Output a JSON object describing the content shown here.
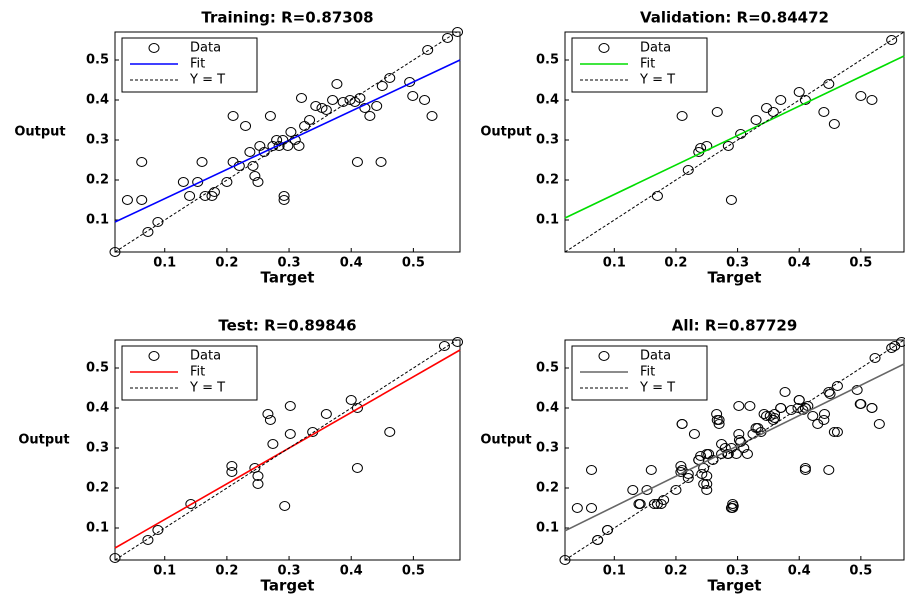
{
  "chart_data": [
    {
      "type": "scatter",
      "title": "Training: R=0.87308",
      "xlabel": "Target",
      "ylabel": "Output",
      "xlim": [
        0.02,
        0.575
      ],
      "ylim": [
        0.02,
        0.57
      ],
      "xticks": [
        0.1,
        0.2,
        0.3,
        0.4,
        0.5
      ],
      "yticks": [
        0.1,
        0.2,
        0.3,
        0.4,
        0.5
      ],
      "series": [
        {
          "name": "Data",
          "color": "#000000",
          "marker": "circle",
          "x": [
            0.02,
            0.04,
            0.063,
            0.063,
            0.073,
            0.089,
            0.13,
            0.14,
            0.153,
            0.16,
            0.165,
            0.176,
            0.18,
            0.2,
            0.21,
            0.21,
            0.22,
            0.23,
            0.237,
            0.242,
            0.245,
            0.25,
            0.253,
            0.26,
            0.27,
            0.274,
            0.28,
            0.284,
            0.29,
            0.292,
            0.292,
            0.298,
            0.303,
            0.31,
            0.316,
            0.32,
            0.325,
            0.333,
            0.343,
            0.353,
            0.36,
            0.37,
            0.377,
            0.387,
            0.398,
            0.406,
            0.41,
            0.414,
            0.422,
            0.43,
            0.441,
            0.448,
            0.45,
            0.462,
            0.494,
            0.499,
            0.518,
            0.523,
            0.53,
            0.555,
            0.571
          ],
          "values": [
            0.02,
            0.15,
            0.15,
            0.245,
            0.07,
            0.095,
            0.195,
            0.16,
            0.195,
            0.245,
            0.16,
            0.16,
            0.17,
            0.195,
            0.245,
            0.36,
            0.235,
            0.335,
            0.27,
            0.235,
            0.21,
            0.195,
            0.285,
            0.27,
            0.36,
            0.285,
            0.3,
            0.285,
            0.3,
            0.16,
            0.15,
            0.285,
            0.32,
            0.3,
            0.285,
            0.405,
            0.335,
            0.35,
            0.385,
            0.38,
            0.375,
            0.4,
            0.44,
            0.395,
            0.4,
            0.395,
            0.245,
            0.405,
            0.38,
            0.36,
            0.385,
            0.245,
            0.435,
            0.455,
            0.445,
            0.41,
            0.4,
            0.525,
            0.36,
            0.555,
            0.57
          ]
        },
        {
          "name": "Fit",
          "color": "#0000ff",
          "style": "solid",
          "x": [
            0.02,
            0.575
          ],
          "values": [
            0.095,
            0.5
          ]
        },
        {
          "name": "Y = T",
          "color": "#000000",
          "style": "dashed",
          "x": [
            0.02,
            0.57
          ],
          "values": [
            0.02,
            0.57
          ]
        }
      ]
    },
    {
      "type": "scatter",
      "title": "Validation: R=0.84472",
      "xlabel": "Target",
      "ylabel": "Output",
      "xlim": [
        0.02,
        0.57
      ],
      "ylim": [
        0.02,
        0.57
      ],
      "xticks": [
        0.1,
        0.2,
        0.3,
        0.4,
        0.5
      ],
      "yticks": [
        0.1,
        0.2,
        0.3,
        0.4,
        0.5
      ],
      "series": [
        {
          "name": "Data",
          "color": "#000000",
          "marker": "circle",
          "x": [
            0.17,
            0.21,
            0.22,
            0.237,
            0.24,
            0.25,
            0.267,
            0.285,
            0.29,
            0.305,
            0.33,
            0.347,
            0.358,
            0.37,
            0.4,
            0.41,
            0.44,
            0.448,
            0.457,
            0.5,
            0.518,
            0.55
          ],
          "values": [
            0.16,
            0.36,
            0.225,
            0.27,
            0.28,
            0.285,
            0.37,
            0.285,
            0.15,
            0.315,
            0.35,
            0.38,
            0.37,
            0.4,
            0.42,
            0.4,
            0.37,
            0.44,
            0.34,
            0.41,
            0.4,
            0.55
          ]
        },
        {
          "name": "Fit",
          "color": "#00dd00",
          "style": "solid",
          "x": [
            0.02,
            0.57
          ],
          "values": [
            0.105,
            0.51
          ]
        },
        {
          "name": "Y = T",
          "color": "#000000",
          "style": "dashed",
          "x": [
            0.02,
            0.57
          ],
          "values": [
            0.02,
            0.57
          ]
        }
      ]
    },
    {
      "type": "scatter",
      "title": "Test: R=0.89846",
      "xlabel": "Target",
      "ylabel": "Output",
      "xlim": [
        0.02,
        0.575
      ],
      "ylim": [
        0.02,
        0.57
      ],
      "xticks": [
        0.1,
        0.2,
        0.3,
        0.4,
        0.5
      ],
      "yticks": [
        0.1,
        0.2,
        0.3,
        0.4,
        0.5
      ],
      "series": [
        {
          "name": "Data",
          "color": "#000000",
          "marker": "circle",
          "x": [
            0.02,
            0.073,
            0.089,
            0.142,
            0.208,
            0.208,
            0.245,
            0.25,
            0.25,
            0.266,
            0.27,
            0.274,
            0.293,
            0.302,
            0.302,
            0.338,
            0.36,
            0.4,
            0.41,
            0.41,
            0.462,
            0.55,
            0.571
          ],
          "values": [
            0.025,
            0.07,
            0.095,
            0.16,
            0.24,
            0.255,
            0.25,
            0.23,
            0.21,
            0.385,
            0.37,
            0.31,
            0.155,
            0.335,
            0.405,
            0.34,
            0.385,
            0.42,
            0.25,
            0.4,
            0.34,
            0.555,
            0.565
          ]
        },
        {
          "name": "Fit",
          "color": "#ff0000",
          "style": "solid",
          "x": [
            0.02,
            0.575
          ],
          "values": [
            0.05,
            0.545
          ]
        },
        {
          "name": "Y = T",
          "color": "#000000",
          "style": "dashed",
          "x": [
            0.02,
            0.57
          ],
          "values": [
            0.02,
            0.57
          ]
        }
      ]
    },
    {
      "type": "scatter",
      "title": "All: R=0.87729",
      "xlabel": "Target",
      "ylabel": "Output",
      "xlim": [
        0.02,
        0.57
      ],
      "ylim": [
        0.02,
        0.57
      ],
      "xticks": [
        0.1,
        0.2,
        0.3,
        0.4,
        0.5
      ],
      "yticks": [
        0.1,
        0.2,
        0.3,
        0.4,
        0.5
      ],
      "series": [
        {
          "name": "Data",
          "color": "#000000",
          "marker": "circle",
          "x": [
            0.02,
            0.04,
            0.063,
            0.063,
            0.073,
            0.089,
            0.13,
            0.14,
            0.153,
            0.16,
            0.165,
            0.176,
            0.18,
            0.2,
            0.21,
            0.21,
            0.22,
            0.23,
            0.237,
            0.242,
            0.245,
            0.25,
            0.253,
            0.26,
            0.27,
            0.274,
            0.28,
            0.284,
            0.29,
            0.292,
            0.292,
            0.298,
            0.303,
            0.31,
            0.316,
            0.32,
            0.325,
            0.333,
            0.343,
            0.353,
            0.36,
            0.37,
            0.377,
            0.387,
            0.398,
            0.406,
            0.41,
            0.414,
            0.422,
            0.43,
            0.441,
            0.448,
            0.45,
            0.462,
            0.494,
            0.499,
            0.518,
            0.523,
            0.53,
            0.555,
            0.566,
            0.17,
            0.21,
            0.22,
            0.237,
            0.24,
            0.25,
            0.267,
            0.285,
            0.29,
            0.305,
            0.33,
            0.347,
            0.358,
            0.37,
            0.4,
            0.41,
            0.44,
            0.448,
            0.457,
            0.5,
            0.518,
            0.55,
            0.073,
            0.089,
            0.142,
            0.208,
            0.208,
            0.245,
            0.25,
            0.25,
            0.266,
            0.27,
            0.274,
            0.293,
            0.302,
            0.302,
            0.338,
            0.36,
            0.4,
            0.41,
            0.41,
            0.462
          ],
          "values": [
            0.02,
            0.15,
            0.15,
            0.245,
            0.07,
            0.095,
            0.195,
            0.16,
            0.195,
            0.245,
            0.16,
            0.16,
            0.17,
            0.195,
            0.245,
            0.36,
            0.235,
            0.335,
            0.27,
            0.235,
            0.21,
            0.195,
            0.285,
            0.27,
            0.36,
            0.285,
            0.3,
            0.285,
            0.3,
            0.16,
            0.15,
            0.285,
            0.32,
            0.3,
            0.285,
            0.405,
            0.335,
            0.35,
            0.385,
            0.38,
            0.375,
            0.4,
            0.44,
            0.395,
            0.4,
            0.395,
            0.245,
            0.405,
            0.38,
            0.36,
            0.385,
            0.245,
            0.435,
            0.455,
            0.445,
            0.41,
            0.4,
            0.525,
            0.36,
            0.555,
            0.565,
            0.16,
            0.36,
            0.225,
            0.27,
            0.28,
            0.285,
            0.37,
            0.285,
            0.15,
            0.315,
            0.35,
            0.38,
            0.37,
            0.4,
            0.42,
            0.4,
            0.37,
            0.44,
            0.34,
            0.41,
            0.4,
            0.55,
            0.07,
            0.095,
            0.16,
            0.24,
            0.255,
            0.25,
            0.23,
            0.21,
            0.385,
            0.37,
            0.31,
            0.155,
            0.335,
            0.405,
            0.34,
            0.385,
            0.42,
            0.25,
            0.4,
            0.34
          ]
        },
        {
          "name": "Fit",
          "color": "#666666",
          "style": "solid",
          "x": [
            0.02,
            0.57
          ],
          "values": [
            0.093,
            0.51
          ]
        },
        {
          "name": "Y = T",
          "color": "#000000",
          "style": "dashed",
          "x": [
            0.02,
            0.57
          ],
          "values": [
            0.02,
            0.57
          ]
        }
      ]
    }
  ]
}
